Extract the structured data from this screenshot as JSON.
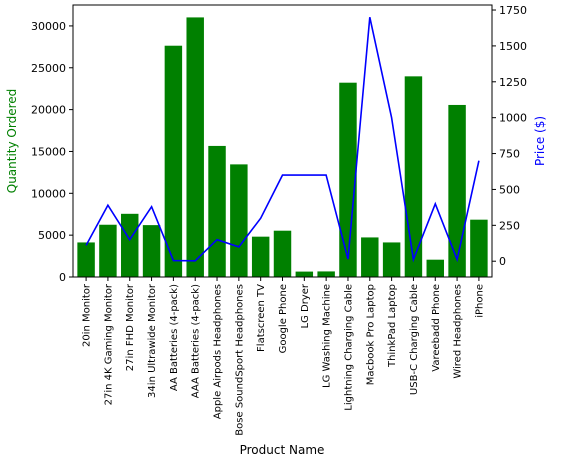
{
  "chart_data": {
    "type": "bar",
    "secondary_type": "line",
    "categories": [
      "20in Monitor",
      "27in 4K Gaming Monitor",
      "27in FHD Monitor",
      "34in Ultrawide Monitor",
      "AA Batteries (4-pack)",
      "AAA Batteries (4-pack)",
      "Apple Airpods Headphones",
      "Bose SoundSport Headphones",
      "Flatscreen TV",
      "Google Phone",
      "LG Dryer",
      "LG Washing Machine",
      "Lightning Charging Cable",
      "Macbook Pro Laptop",
      "ThinkPad Laptop",
      "USB-C Charging Cable",
      "Vareebadd Phone",
      "Wired Headphones",
      "iPhone"
    ],
    "series": [
      {
        "name": "Quantity Ordered",
        "axis": "left",
        "color": "#008000",
        "values": [
          4129,
          6244,
          7550,
          6199,
          27635,
          31017,
          15661,
          13457,
          4819,
          5532,
          646,
          666,
          23217,
          4728,
          4130,
          23975,
          2068,
          20557,
          6849
        ]
      },
      {
        "name": "Price ($)",
        "axis": "right",
        "color": "#0000ff",
        "values": [
          110,
          390,
          150,
          380,
          4,
          3,
          150,
          100,
          300,
          600,
          600,
          600,
          15,
          1700,
          1000,
          12,
          400,
          12,
          700
        ]
      }
    ],
    "xlabel": "Product Name",
    "ylabel": "Quantity Ordered",
    "ylabel_color": "#008000",
    "y2label": "Price ($)",
    "y2label_color": "#0000ff",
    "ylim": [
      0,
      32500
    ],
    "yticks": [
      0,
      5000,
      10000,
      15000,
      20000,
      25000,
      30000
    ],
    "y2lim": [
      -110,
      1785
    ],
    "y2ticks": [
      0,
      250,
      500,
      750,
      1000,
      1250,
      1500,
      1750
    ],
    "grid": false,
    "legend": "none"
  }
}
